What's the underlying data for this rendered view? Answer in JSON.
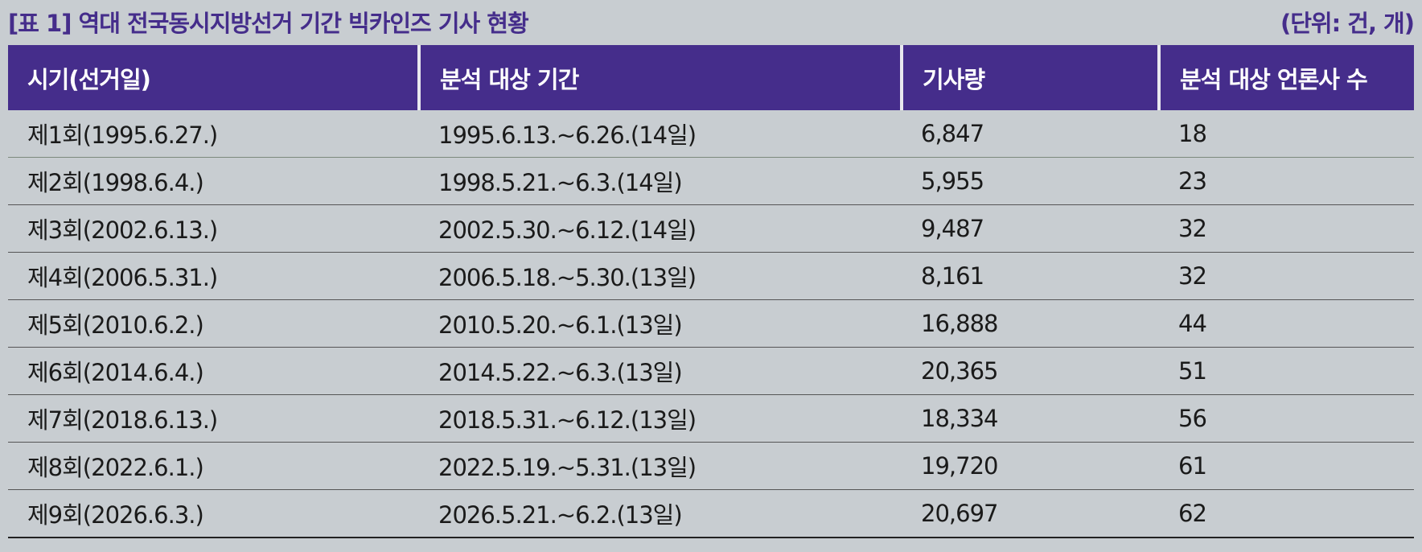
{
  "header": {
    "title": "[표 1] 역대 전국동시지방선거 기간 빅카인즈 기사 현황",
    "unit": "(단위: 건, 개)"
  },
  "table": {
    "columns": [
      "시기(선거일)",
      "분석 대상 기간",
      "기사량",
      "분석 대상 언론사 수"
    ],
    "rows": [
      [
        "제1회(1995.6.27.)",
        "1995.6.13.~6.26.(14일)",
        "6,847",
        "18"
      ],
      [
        "제2회(1998.6.4.)",
        "1998.5.21.~6.3.(14일)",
        "5,955",
        "23"
      ],
      [
        "제3회(2002.6.13.)",
        "2002.5.30.~6.12.(14일)",
        "9,487",
        "32"
      ],
      [
        "제4회(2006.5.31.)",
        "2006.5.18.~5.30.(13일)",
        "8,161",
        "32"
      ],
      [
        "제5회(2010.6.2.)",
        "2010.5.20.~6.1.(13일)",
        "16,888",
        "44"
      ],
      [
        "제6회(2014.6.4.)",
        "2014.5.22.~6.3.(13일)",
        "20,365",
        "51"
      ],
      [
        "제7회(2018.6.13.)",
        "2018.5.31.~6.12.(13일)",
        "18,334",
        "56"
      ],
      [
        "제8회(2022.6.1.)",
        "2022.5.19.~5.31.(13일)",
        "19,720",
        "61"
      ],
      [
        "제9회(2026.6.3.)",
        "2026.5.21.~6.2.(13일)",
        "20,697",
        "62"
      ]
    ]
  }
}
